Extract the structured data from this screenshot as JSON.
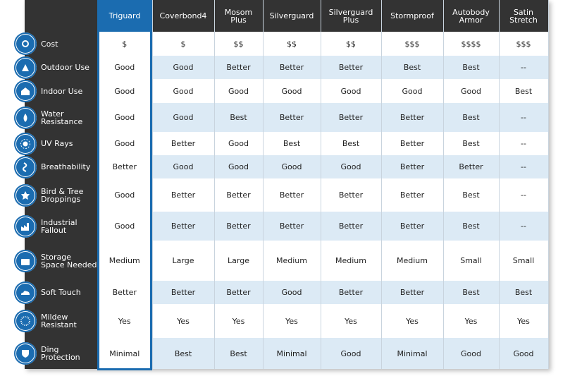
{
  "columns": [
    "Triguard",
    "Coverbond4",
    "Mosom Plus",
    "Silverguard",
    "Silverguard Plus",
    "Stormproof",
    "Autobody Armor",
    "Satin Stretch"
  ],
  "rows": [
    {
      "label": "Cost",
      "values": [
        "$",
        "$",
        "$$",
        "$$",
        "$$",
        "$$$",
        "$$$$",
        "$$$"
      ]
    },
    {
      "label": "Outdoor Use",
      "values": [
        "Good",
        "Good",
        "Better",
        "Better",
        "Better",
        "Best",
        "Best",
        "--"
      ]
    },
    {
      "label": "Indoor Use",
      "values": [
        "Good",
        "Good",
        "Good",
        "Good",
        "Good",
        "Good",
        "Good",
        "Best"
      ]
    },
    {
      "label": "Water Resistance",
      "values": [
        "Good",
        "Good",
        "Best",
        "Better",
        "Better",
        "Better",
        "Best",
        "--"
      ]
    },
    {
      "label": "UV Rays",
      "values": [
        "Good",
        "Better",
        "Good",
        "Best",
        "Best",
        "Better",
        "Best",
        "--"
      ]
    },
    {
      "label": "Breathability",
      "values": [
        "Better",
        "Good",
        "Good",
        "Good",
        "Good",
        "Better",
        "Better",
        "--"
      ]
    },
    {
      "label": "Bird & Tree Droppings",
      "values": [
        "Good",
        "Better",
        "Better",
        "Better",
        "Better",
        "Better",
        "Best",
        "--"
      ]
    },
    {
      "label": "Industrial Fallout",
      "values": [
        "Good",
        "Better",
        "Better",
        "Better",
        "Better",
        "Better",
        "Best",
        "--"
      ]
    },
    {
      "label": "Storage Space Needed",
      "values": [
        "Medium",
        "Large",
        "Large",
        "Medium",
        "Medium",
        "Medium",
        "Small",
        "Small"
      ]
    },
    {
      "label": "Soft Touch",
      "values": [
        "Better",
        "Better",
        "Better",
        "Good",
        "Better",
        "Better",
        "Best",
        "Best"
      ]
    },
    {
      "label": "Mildew Resistant",
      "values": [
        "Yes",
        "Yes",
        "Yes",
        "Yes",
        "Yes",
        "Yes",
        "Yes",
        "Yes"
      ]
    },
    {
      "label": "Ding Protection",
      "values": [
        "Minimal",
        "Best",
        "Best",
        "Minimal",
        "Good",
        "Minimal",
        "Good",
        "Good"
      ]
    }
  ]
}
